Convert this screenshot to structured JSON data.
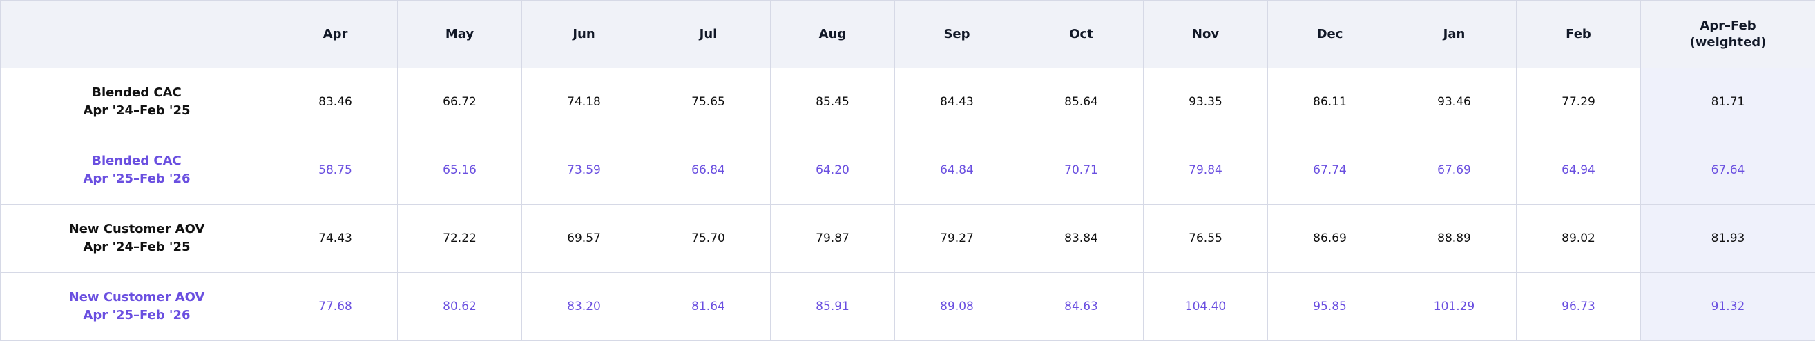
{
  "table": {
    "header": {
      "label": "",
      "months": [
        "Apr",
        "May",
        "Jun",
        "Jul",
        "Aug",
        "Sep",
        "Oct",
        "Nov",
        "Dec",
        "Jan",
        "Feb"
      ],
      "total_line1": "Apr–Feb",
      "total_line2": "(weighted)"
    },
    "rows": [
      {
        "label_line1": "Blended CAC",
        "label_line2": "Apr '24–Feb '25",
        "values": [
          "83.46",
          "66.72",
          "74.18",
          "75.65",
          "85.45",
          "84.43",
          "85.64",
          "93.35",
          "86.11",
          "93.46",
          "77.29"
        ],
        "total": "81.71"
      },
      {
        "label_line1": "Blended CAC",
        "label_line2": "Apr '25–Feb '26",
        "values": [
          "58.75",
          "65.16",
          "73.59",
          "66.84",
          "64.20",
          "64.84",
          "70.71",
          "79.84",
          "67.74",
          "67.69",
          "64.94"
        ],
        "total": "67.64"
      },
      {
        "label_line1": "New Customer AOV",
        "label_line2": "Apr '24–Feb '25",
        "values": [
          "74.43",
          "72.22",
          "69.57",
          "75.70",
          "79.87",
          "79.27",
          "83.84",
          "76.55",
          "86.69",
          "88.89",
          "89.02"
        ],
        "total": "81.93"
      },
      {
        "label_line1": "New Customer AOV",
        "label_line2": "Apr '25–Feb '26",
        "values": [
          "77.68",
          "80.62",
          "83.20",
          "81.64",
          "85.91",
          "89.08",
          "84.63",
          "104.40",
          "95.85",
          "101.29",
          "96.73"
        ],
        "total": "91.32"
      }
    ]
  },
  "colors": {
    "header_bg": "#f0f2f8",
    "total_col_bg": "#eff1fb",
    "current_year_text": "#6a4fe0",
    "prior_year_text": "#111111",
    "grid": "#d6d9e6"
  }
}
